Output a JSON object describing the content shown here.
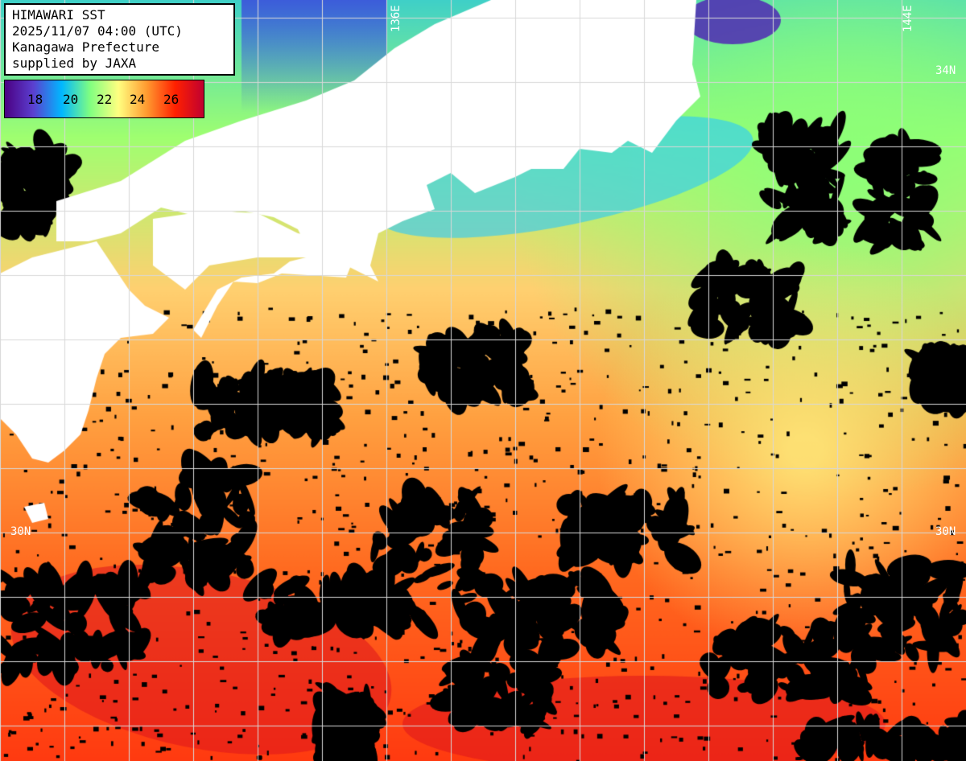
{
  "header": {
    "title": "HIMAWARI SST",
    "datetime": "2025/11/07 04:00 (UTC)",
    "region": "Kanagawa Prefecture",
    "credit": "supplied by JAXA"
  },
  "color_scale": {
    "ticks": [
      "18",
      "20",
      "22",
      "24",
      "26"
    ],
    "stops": [
      "#4b0082",
      "#5b3fd0",
      "#00b7ff",
      "#80ff80",
      "#ffff80",
      "#ff9a30",
      "#ff2000",
      "#c00030"
    ]
  },
  "grid_labels": {
    "lon_136": "136E",
    "lon_144": "144E",
    "lat_34_right": "34N",
    "lat_30_left": "30N",
    "lat_30_right": "30N"
  },
  "colors": {
    "land": "#ffffff",
    "cloud": "#000000",
    "grid": "#d8d8d8"
  }
}
